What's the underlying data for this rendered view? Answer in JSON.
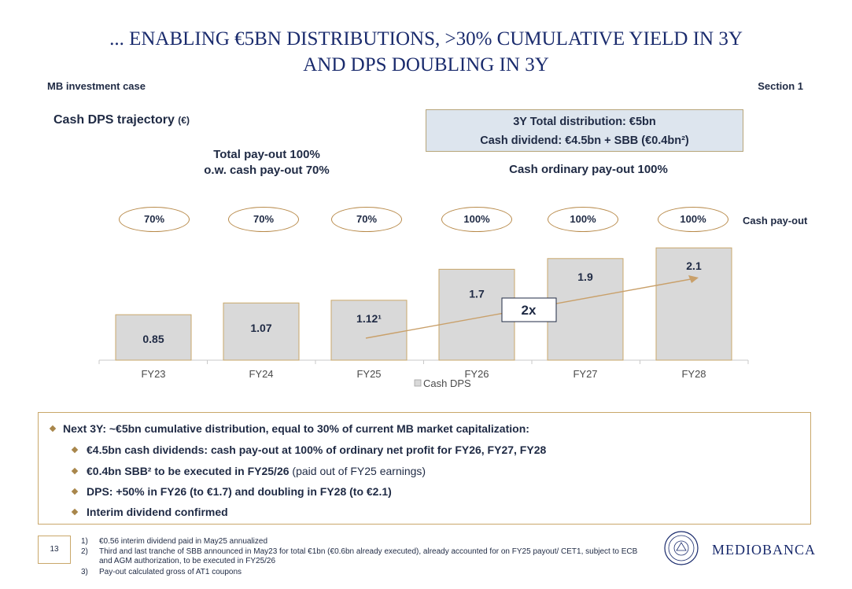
{
  "title_line1": "... ENABLING €5BN DISTRIBUTIONS, >30% CUMULATIVE YIELD IN 3Y",
  "title_line2": "AND DPS DOUBLING IN 3Y",
  "header_left": "MB investment case",
  "header_right": "Section 1",
  "dps_title": "Cash DPS trajectory",
  "dps_unit": "(€)",
  "dist_box_line1": "3Y Total distribution: €5bn",
  "dist_box_line2": "Cash dividend: €4.5bn + SBB (€0.4bn²)",
  "payout_left_line1": "Total pay-out 100%",
  "payout_left_line2": "o.w. cash pay-out 70%",
  "payout_right": "Cash ordinary pay-out 100%",
  "cash_payout_label": "Cash pay-out",
  "payouts": [
    "70%",
    "70%",
    "70%",
    "100%",
    "100%",
    "100%"
  ],
  "arrow_label": "2x",
  "chart_data": {
    "type": "bar",
    "categories": [
      "FY23",
      "FY24",
      "FY25",
      "FY26",
      "FY27",
      "FY28"
    ],
    "values": [
      0.85,
      1.07,
      1.12,
      1.7,
      1.9,
      2.1
    ],
    "labels": [
      "0.85",
      "1.07",
      "1.12¹",
      "1.7",
      "1.9",
      "2.1"
    ],
    "series_name": "Cash DPS",
    "legend": "bottom",
    "grid": false,
    "bar_color": "#d9d9d9",
    "bar_border": "#c9a76a",
    "ylim": [
      0,
      2.3
    ]
  },
  "bullets": {
    "main": "Next 3Y: ~€5bn cumulative distribution, equal to 30% of current MB market capitalization:",
    "sub1": "€4.5bn cash dividends: cash pay-out at 100% of ordinary net profit for FY26, FY27, FY28",
    "sub2_bold": "€0.4bn SBB² to be executed in FY25/26",
    "sub2_normal": " (paid out of FY25 earnings)",
    "sub3": "DPS: +50% in FY26 (to €1.7) and doubling in FY28 (to €2.1)",
    "sub4": "Interim dividend confirmed"
  },
  "page_number": "13",
  "footnotes": [
    {
      "num": "1)",
      "text": "€0.56 interim dividend paid in May25 annualized"
    },
    {
      "num": "2)",
      "text": "Third and last tranche of SBB announced in May23 for total €1bn (€0.6bn already executed), already accounted for on FY25 payout/ CET1, subject to ECB and AGM authorization, to be executed in FY25/26"
    },
    {
      "num": "3)",
      "text": "Pay-out calculated gross of AT1 coupons"
    }
  ],
  "logo_text": "MEDIOBANCA",
  "colors": {
    "navy": "#1a2b6d",
    "gold": "#b88a4a",
    "arrow": "#c9a06a",
    "box_fill": "#dde5ee"
  }
}
